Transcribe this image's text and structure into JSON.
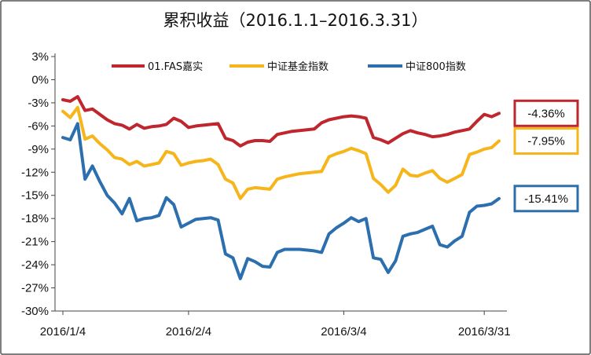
{
  "chart_data": {
    "type": "line",
    "title": "累积收益（2016.1.1–2016.3.31）",
    "xlabel": "",
    "ylabel": "",
    "x_tick_labels": [
      "2016/1/4",
      "2016/2/4",
      "2016/3/4",
      "2016/3/31"
    ],
    "x_ticks": [
      0,
      17,
      38,
      57
    ],
    "y_ticks": [
      3,
      0,
      -3,
      -6,
      -9,
      -12,
      -15,
      -18,
      -21,
      -24,
      -27,
      -30
    ],
    "y_tick_labels": [
      "3%",
      "0%",
      "-3%",
      "-6%",
      "-9%",
      "-12%",
      "-15%",
      "-18%",
      "-21%",
      "-24%",
      "-27%",
      "-30%"
    ],
    "ylim": [
      -30,
      3
    ],
    "grid": false,
    "legend": "top",
    "series": [
      {
        "name": "01.FAS嘉实",
        "color": "#c0262d",
        "end_label": "-4.36%",
        "values": [
          -2.6,
          -2.8,
          -2.2,
          -4.0,
          -3.8,
          -4.5,
          -5.2,
          -5.7,
          -5.9,
          -6.4,
          -5.8,
          -6.3,
          -6.1,
          -6.0,
          -5.8,
          -5.0,
          -5.4,
          -6.2,
          -6.0,
          -5.9,
          -5.8,
          -5.7,
          -7.6,
          -7.9,
          -8.6,
          -8.1,
          -7.9,
          -7.9,
          -8.0,
          -7.1,
          -6.9,
          -6.7,
          -6.6,
          -6.5,
          -6.4,
          -5.6,
          -5.2,
          -5.0,
          -4.8,
          -4.7,
          -4.8,
          -5.0,
          -7.5,
          -7.8,
          -8.2,
          -7.6,
          -7.0,
          -6.6,
          -6.9,
          -7.1,
          -7.4,
          -7.3,
          -7.1,
          -6.8,
          -6.6,
          -6.4,
          -5.4,
          -4.5,
          -4.8,
          -4.36
        ]
      },
      {
        "name": "中证基金指数",
        "color": "#f5b51b",
        "end_label": "-7.95%",
        "values": [
          -4.1,
          -4.9,
          -3.6,
          -7.7,
          -7.3,
          -8.3,
          -9.1,
          -10.1,
          -10.3,
          -11.0,
          -10.6,
          -11.2,
          -11.0,
          -10.8,
          -9.3,
          -9.6,
          -11.1,
          -10.8,
          -10.6,
          -10.5,
          -10.3,
          -11.0,
          -12.9,
          -13.4,
          -15.4,
          -14.2,
          -14.0,
          -14.1,
          -14.2,
          -12.9,
          -12.6,
          -12.4,
          -12.2,
          -12.1,
          -12.0,
          -11.9,
          -10.0,
          -9.6,
          -9.3,
          -8.9,
          -9.2,
          -9.6,
          -12.8,
          -13.6,
          -14.6,
          -13.7,
          -11.6,
          -12.4,
          -12.5,
          -12.1,
          -11.8,
          -12.8,
          -13.3,
          -12.8,
          -12.3,
          -9.7,
          -9.4,
          -9.0,
          -8.8,
          -7.95
        ]
      },
      {
        "name": "中证800指数",
        "color": "#2c6fae",
        "end_label": "-15.41%",
        "values": [
          -7.5,
          -7.8,
          -5.7,
          -12.9,
          -11.2,
          -13.2,
          -15.0,
          -16.0,
          -17.4,
          -15.4,
          -18.3,
          -18.0,
          -17.9,
          -17.6,
          -15.3,
          -16.2,
          -19.1,
          -18.6,
          -18.1,
          -18.0,
          -17.9,
          -18.2,
          -22.6,
          -23.1,
          -25.8,
          -23.2,
          -23.6,
          -24.2,
          -24.3,
          -22.4,
          -22.0,
          -22.0,
          -22.0,
          -22.1,
          -22.2,
          -22.4,
          -20.0,
          -19.2,
          -18.6,
          -17.9,
          -18.4,
          -18.0,
          -23.1,
          -23.3,
          -25.0,
          -23.5,
          -20.3,
          -20.0,
          -19.8,
          -19.4,
          -19.0,
          -21.4,
          -21.7,
          -20.9,
          -20.3,
          -17.2,
          -16.4,
          -16.3,
          -16.1,
          -15.41
        ]
      }
    ]
  }
}
